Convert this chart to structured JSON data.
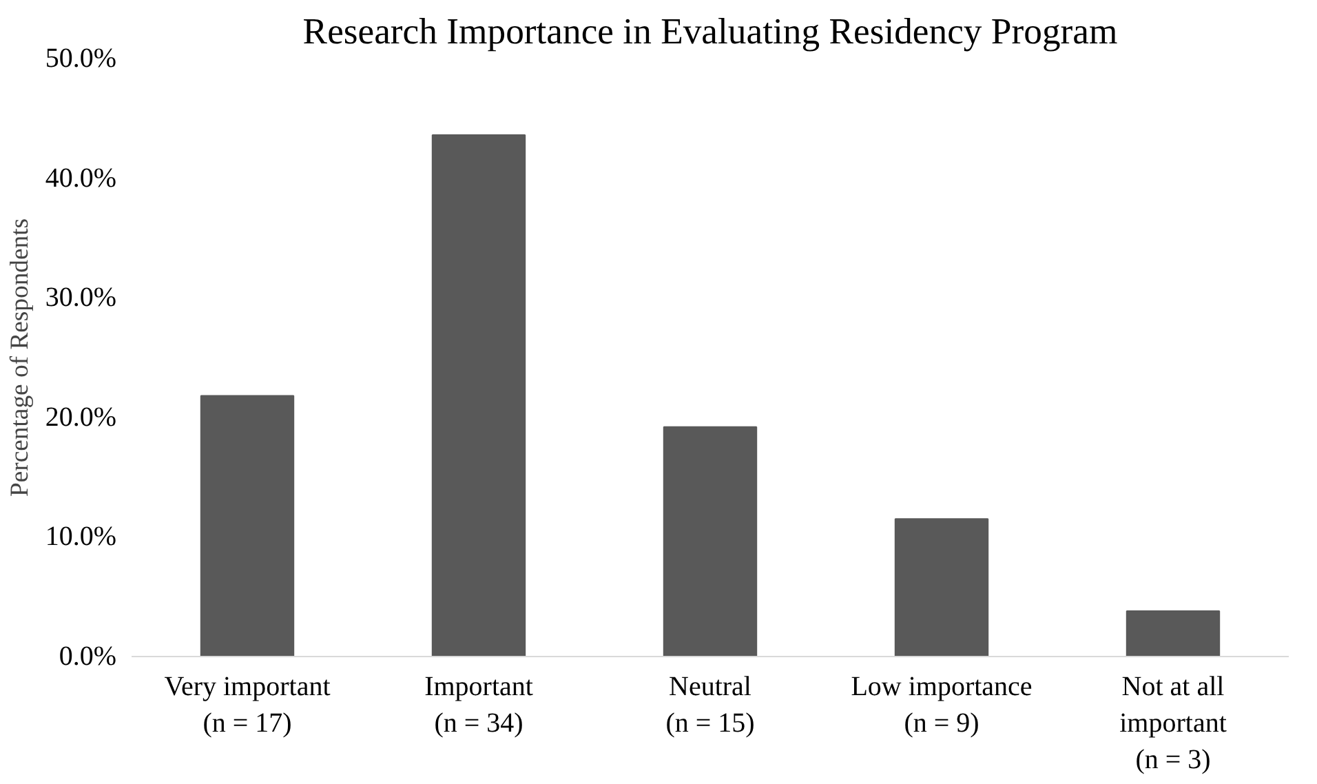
{
  "chart_data": {
    "type": "bar",
    "title": "Research Importance in Evaluating Residency Program",
    "ylabel": "Percentage of Respondents",
    "categories": [
      "Very important\n(n = 17)",
      "Important\n(n = 34)",
      "Neutral\n(n = 15)",
      "Low importance\n(n = 9)",
      "Not at all\nimportant\n(n = 3)"
    ],
    "values": [
      21.8,
      43.6,
      19.2,
      11.5,
      3.8
    ],
    "color": "#595959",
    "ylim": [
      0,
      50
    ],
    "yticks": [
      {
        "value": 0,
        "label": "0.0%"
      },
      {
        "value": 10,
        "label": "10.0%"
      },
      {
        "value": 20,
        "label": "20.0%"
      },
      {
        "value": 30,
        "label": "30.0%"
      },
      {
        "value": 40,
        "label": "40.0%"
      },
      {
        "value": 50,
        "label": "50.0%"
      }
    ],
    "grid": false
  }
}
